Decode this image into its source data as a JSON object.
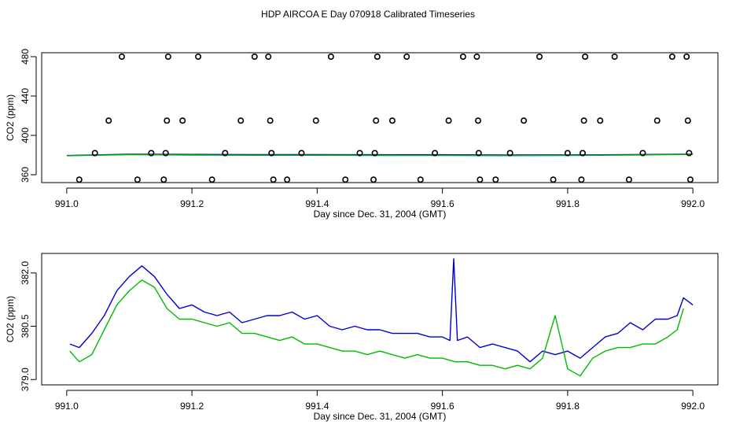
{
  "title": "HDP AIRCOA E  Day 070918  Calibrated Timeseries",
  "colors": {
    "series_a": "#0000cc",
    "series_b": "#00bb00",
    "points": "#000000",
    "axis": "#000000"
  },
  "chart_data": [
    {
      "type": "line",
      "title": "HDP AIRCOA E  Day 070918  Calibrated Timeseries",
      "xlabel": "Day since Dec. 31, 2004 (GMT)",
      "ylabel": "CO2 (ppm)",
      "xlim": [
        990.96,
        992.04
      ],
      "ylim": [
        352,
        484
      ],
      "xticks": [
        991.0,
        991.2,
        991.4,
        991.6,
        991.8,
        992.0
      ],
      "xtick_labels": [
        "991.0",
        "991.2",
        "991.4",
        "991.6",
        "991.8",
        "992.0"
      ],
      "yticks": [
        360,
        400,
        440,
        480
      ],
      "ytick_labels": [
        "360",
        "400",
        "440",
        "480"
      ],
      "grid": false,
      "series": [
        {
          "style": "line",
          "color": "#0000cc",
          "x": [
            991.0,
            991.1,
            991.2,
            991.3,
            991.4,
            991.5,
            991.6,
            991.7,
            991.8,
            991.9,
            992.0
          ],
          "y": [
            379.5,
            380.8,
            380.6,
            380.4,
            380.5,
            380.3,
            380.3,
            380.0,
            380.2,
            380.4,
            381.0
          ]
        },
        {
          "style": "line",
          "color": "#00bb00",
          "x": [
            991.0,
            991.1,
            991.2,
            991.3,
            991.4,
            991.5,
            991.6,
            991.7,
            991.8,
            991.9,
            992.0
          ],
          "y": [
            379.3,
            380.3,
            380.0,
            379.8,
            379.8,
            379.6,
            379.5,
            379.4,
            379.5,
            379.9,
            380.6
          ]
        },
        {
          "style": "points",
          "color": "#000000",
          "x": [
            991.02,
            991.045,
            991.067,
            991.088,
            991.113,
            991.135,
            991.155,
            991.158,
            991.16,
            991.162,
            991.185,
            991.21,
            991.232,
            991.253,
            991.278,
            991.3,
            991.322,
            991.325,
            991.327,
            991.33,
            991.352,
            991.375,
            991.398,
            991.422,
            991.445,
            991.468,
            991.49,
            991.492,
            991.494,
            991.496,
            991.52,
            991.543,
            991.565,
            991.588,
            991.61,
            991.633,
            991.655,
            991.657,
            991.658,
            991.66,
            991.685,
            991.708,
            991.73,
            991.755,
            991.777,
            991.8,
            991.822,
            991.824,
            991.826,
            991.828,
            991.852,
            991.875,
            991.898,
            991.92,
            991.943,
            991.967,
            991.99,
            991.992,
            991.994,
            991.996
          ],
          "y": [
            355,
            382,
            415,
            480,
            355,
            382,
            355,
            382,
            415,
            480,
            415,
            480,
            355,
            382,
            415,
            480,
            480,
            415,
            382,
            355,
            355,
            382,
            415,
            480,
            355,
            382,
            355,
            382,
            415,
            480,
            415,
            480,
            355,
            382,
            415,
            480,
            480,
            415,
            382,
            355,
            355,
            382,
            415,
            480,
            355,
            382,
            355,
            382,
            415,
            480,
            415,
            480,
            355,
            382,
            415,
            480,
            480,
            415,
            382,
            355
          ]
        }
      ]
    },
    {
      "type": "line",
      "xlabel": "Day since Dec. 31, 2004 (GMT)",
      "ylabel": "CO2 (ppm)",
      "xlim": [
        990.96,
        992.04
      ],
      "ylim": [
        378.85,
        382.55
      ],
      "xticks": [
        991.0,
        991.2,
        991.4,
        991.6,
        991.8,
        992.0
      ],
      "xtick_labels": [
        "991.0",
        "991.2",
        "991.4",
        "991.6",
        "991.8",
        "992.0"
      ],
      "yticks": [
        379.0,
        380.5,
        382.0
      ],
      "ytick_labels": [
        "379.0",
        "380.5",
        "382.0"
      ],
      "grid": false,
      "series": [
        {
          "color": "#0000cc",
          "x": [
            991.005,
            991.02,
            991.04,
            991.06,
            991.08,
            991.1,
            991.12,
            991.14,
            991.16,
            991.18,
            991.2,
            991.22,
            991.24,
            991.26,
            991.28,
            991.3,
            991.32,
            991.34,
            991.36,
            991.38,
            991.4,
            991.42,
            991.44,
            991.46,
            991.48,
            991.5,
            991.52,
            991.54,
            991.56,
            991.58,
            991.6,
            991.612,
            991.618,
            991.624,
            991.64,
            991.66,
            991.68,
            991.7,
            991.72,
            991.74,
            991.76,
            991.78,
            991.8,
            991.82,
            991.84,
            991.86,
            991.88,
            991.9,
            991.92,
            991.94,
            991.96,
            991.975,
            991.985,
            992.0
          ],
          "y": [
            380.0,
            379.9,
            380.3,
            380.8,
            381.5,
            381.9,
            382.2,
            381.9,
            381.4,
            381.0,
            381.1,
            380.9,
            380.8,
            380.9,
            380.6,
            380.7,
            380.8,
            380.8,
            380.9,
            380.7,
            380.8,
            380.5,
            380.4,
            380.5,
            380.4,
            380.4,
            380.3,
            380.3,
            380.3,
            380.2,
            380.2,
            380.1,
            382.4,
            380.1,
            380.2,
            379.9,
            380.0,
            379.9,
            379.8,
            379.5,
            379.8,
            379.7,
            379.8,
            379.6,
            379.9,
            380.2,
            380.3,
            380.6,
            380.4,
            380.7,
            380.7,
            380.8,
            381.3,
            381.1
          ]
        },
        {
          "color": "#00bb00",
          "x": [
            991.005,
            991.02,
            991.04,
            991.06,
            991.08,
            991.1,
            991.12,
            991.14,
            991.16,
            991.18,
            991.2,
            991.22,
            991.24,
            991.26,
            991.28,
            991.3,
            991.32,
            991.34,
            991.36,
            991.38,
            991.4,
            991.42,
            991.44,
            991.46,
            991.48,
            991.5,
            991.52,
            991.54,
            991.56,
            991.58,
            991.6,
            991.62,
            991.64,
            991.66,
            991.68,
            991.7,
            991.72,
            991.74,
            991.76,
            991.78,
            991.8,
            991.82,
            991.84,
            991.86,
            991.88,
            991.9,
            991.92,
            991.94,
            991.96,
            991.975,
            991.985
          ],
          "y": [
            379.8,
            379.5,
            379.7,
            380.4,
            381.1,
            381.5,
            381.8,
            381.6,
            381.0,
            380.7,
            380.7,
            380.6,
            380.5,
            380.6,
            380.3,
            380.3,
            380.2,
            380.1,
            380.2,
            380.0,
            380.0,
            379.9,
            379.8,
            379.8,
            379.7,
            379.8,
            379.7,
            379.6,
            379.7,
            379.6,
            379.6,
            379.5,
            379.5,
            379.4,
            379.4,
            379.3,
            379.4,
            379.3,
            379.6,
            380.8,
            379.3,
            379.1,
            379.6,
            379.8,
            379.9,
            379.9,
            380.0,
            380.0,
            380.2,
            380.4,
            381.0
          ]
        }
      ]
    }
  ]
}
